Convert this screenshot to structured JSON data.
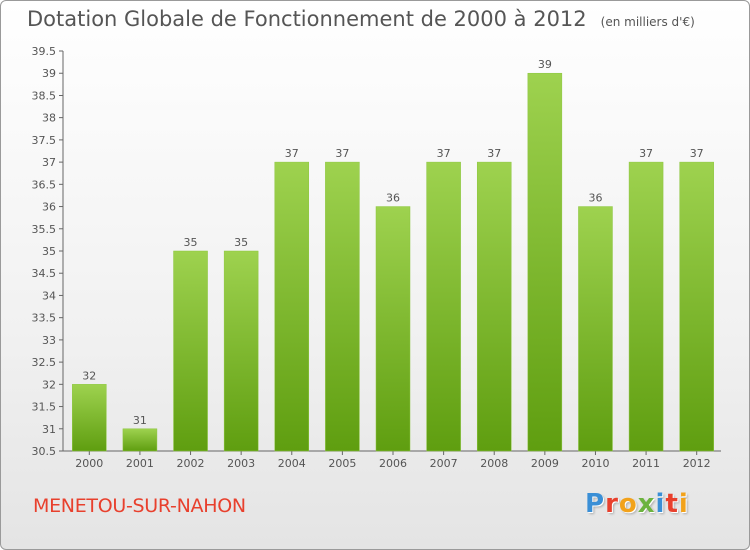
{
  "title": "Dotation Globale de Fonctionnement de 2000 à 2012",
  "unit": "(en milliers d'€)",
  "commune": "MENETOU-SUR-NAHON",
  "logo": {
    "text": "Proxiti",
    "colors": [
      "#3a8fd6",
      "#e8402d",
      "#f2a21b",
      "#6cb33f",
      "#3a8fd6",
      "#e8402d",
      "#f2a21b"
    ]
  },
  "colors": {
    "bar_top": "#9ed24f",
    "bar_bottom": "#5f9e10",
    "text": "#555555",
    "commune": "#e8402d"
  },
  "chart_data": {
    "type": "bar",
    "title": "Dotation Globale de Fonctionnement de 2000 à 2012",
    "subtitle": "(en milliers d'€)",
    "xlabel": "",
    "ylabel": "",
    "categories": [
      "2000",
      "2001",
      "2002",
      "2003",
      "2004",
      "2005",
      "2006",
      "2007",
      "2008",
      "2009",
      "2010",
      "2011",
      "2012"
    ],
    "values": [
      32,
      31,
      35,
      35,
      37,
      37,
      36,
      37,
      37,
      39,
      36,
      37,
      37
    ],
    "ylim": [
      30.5,
      39.5
    ],
    "yticks": [
      "30.5",
      "31",
      "31.5",
      "32",
      "32.5",
      "33",
      "33.5",
      "34",
      "34.5",
      "35",
      "35.5",
      "36",
      "36.5",
      "37",
      "37.5",
      "38",
      "38.5",
      "39",
      "39.5"
    ],
    "grid": false,
    "legend": "none"
  }
}
